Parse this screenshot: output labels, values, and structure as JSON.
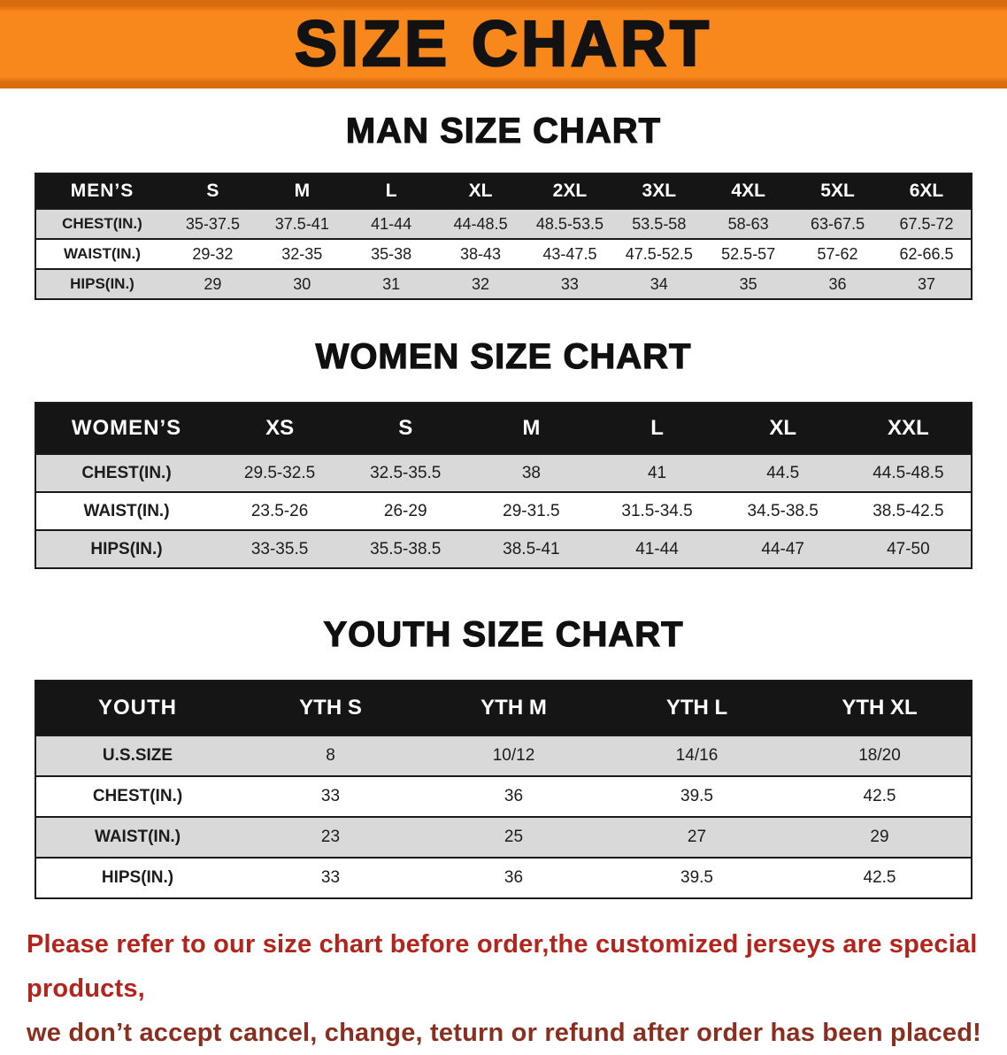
{
  "colors": {
    "banner_bg": "#f8871c",
    "banner_edge": "#d96c0c",
    "table_header_bg": "#151515",
    "row_gray": "#d9d9d9",
    "disclaimer_red_1": "#b3241c",
    "disclaimer_red_2": "#8a2f1f"
  },
  "banner": {
    "title": "SIZE CHART"
  },
  "sections": [
    {
      "heading": "MAN SIZE CHART",
      "table": {
        "name": "mens",
        "corner": "MEN’S",
        "columns": [
          "S",
          "M",
          "L",
          "XL",
          "2XL",
          "3XL",
          "4XL",
          "5XL",
          "6XL"
        ],
        "rows": [
          {
            "label": "CHEST(IN.)",
            "values": [
              "35-37.5",
              "37.5-41",
              "41-44",
              "44-48.5",
              "48.5-53.5",
              "53.5-58",
              "58-63",
              "63-67.5",
              "67.5-72"
            ]
          },
          {
            "label": "WAIST(IN.)",
            "values": [
              "29-32",
              "32-35",
              "35-38",
              "38-43",
              "43-47.5",
              "47.5-52.5",
              "52.5-57",
              "57-62",
              "62-66.5"
            ]
          },
          {
            "label": "HIPS(IN.)",
            "values": [
              "29",
              "30",
              "31",
              "32",
              "33",
              "34",
              "35",
              "36",
              "37"
            ]
          }
        ]
      }
    },
    {
      "heading": "WOMEN SIZE CHART",
      "table": {
        "name": "womens",
        "corner": "WOMEN’S",
        "columns": [
          "XS",
          "S",
          "M",
          "L",
          "XL",
          "XXL"
        ],
        "rows": [
          {
            "label": "CHEST(IN.)",
            "values": [
              "29.5-32.5",
              "32.5-35.5",
              "38",
              "41",
              "44.5",
              "44.5-48.5"
            ]
          },
          {
            "label": "WAIST(IN.)",
            "values": [
              "23.5-26",
              "26-29",
              "29-31.5",
              "31.5-34.5",
              "34.5-38.5",
              "38.5-42.5"
            ]
          },
          {
            "label": "HIPS(IN.)",
            "values": [
              "33-35.5",
              "35.5-38.5",
              "38.5-41",
              "41-44",
              "44-47",
              "47-50"
            ]
          }
        ]
      }
    },
    {
      "heading": "YOUTH SIZE CHART",
      "table": {
        "name": "youth",
        "corner": "YOUTH",
        "columns": [
          "YTH S",
          "YTH M",
          "YTH L",
          "YTH XL"
        ],
        "rows": [
          {
            "label": "U.S.SIZE",
            "values": [
              "8",
              "10/12",
              "14/16",
              "18/20"
            ]
          },
          {
            "label": "CHEST(IN.)",
            "values": [
              "33",
              "36",
              "39.5",
              "42.5"
            ]
          },
          {
            "label": "WAIST(IN.)",
            "values": [
              "23",
              "25",
              "27",
              "29"
            ]
          },
          {
            "label": "HIPS(IN.)",
            "values": [
              "33",
              "36",
              "39.5",
              "42.5"
            ]
          }
        ]
      }
    }
  ],
  "disclaimer": [
    "Please refer to our size chart before order,the customized jerseys are special products,",
    "we don’t accept cancel, change, teturn or refund after order has been placed!"
  ]
}
